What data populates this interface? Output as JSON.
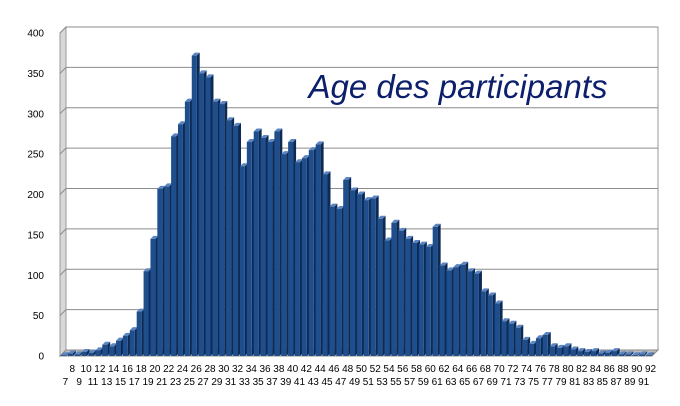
{
  "chart_data": {
    "type": "bar",
    "title": "Age des participants",
    "xlabel": "",
    "ylabel": "",
    "ylim": [
      0,
      400
    ],
    "yticks": [
      "0",
      "50",
      "100",
      "150",
      "200",
      "250",
      "300",
      "350",
      "400"
    ],
    "grid": true,
    "legend": "none",
    "bar_color": "#1f4e8c",
    "categories": [
      "7",
      "8",
      "9",
      "10",
      "11",
      "12",
      "13",
      "14",
      "15",
      "16",
      "17",
      "18",
      "19",
      "20",
      "21",
      "22",
      "23",
      "24",
      "25",
      "26",
      "27",
      "28",
      "29",
      "30",
      "31",
      "32",
      "33",
      "34",
      "35",
      "36",
      "37",
      "38",
      "39",
      "40",
      "41",
      "42",
      "43",
      "44",
      "45",
      "46",
      "47",
      "48",
      "49",
      "50",
      "51",
      "52",
      "53",
      "54",
      "55",
      "56",
      "57",
      "58",
      "59",
      "60",
      "61",
      "62",
      "63",
      "64",
      "65",
      "66",
      "67",
      "68",
      "69",
      "70",
      "71",
      "72",
      "73",
      "74",
      "75",
      "76",
      "77",
      "78",
      "79",
      "80",
      "81",
      "82",
      "83",
      "84",
      "85",
      "86",
      "87",
      "88",
      "89",
      "90",
      "91",
      "92"
    ],
    "values": [
      1,
      3,
      2,
      5,
      4,
      7,
      14,
      12,
      19,
      25,
      32,
      55,
      105,
      145,
      207,
      210,
      272,
      287,
      315,
      372,
      350,
      345,
      315,
      312,
      292,
      285,
      235,
      265,
      278,
      270,
      265,
      278,
      250,
      265,
      240,
      245,
      255,
      262,
      225,
      185,
      182,
      218,
      205,
      200,
      193,
      195,
      170,
      143,
      165,
      155,
      145,
      140,
      138,
      135,
      160,
      112,
      106,
      110,
      113,
      105,
      102,
      80,
      75,
      65,
      43,
      40,
      35,
      20,
      15,
      22,
      26,
      12,
      10,
      12,
      8,
      6,
      5,
      6,
      3,
      4,
      6,
      2,
      2,
      1,
      2,
      1
    ]
  }
}
